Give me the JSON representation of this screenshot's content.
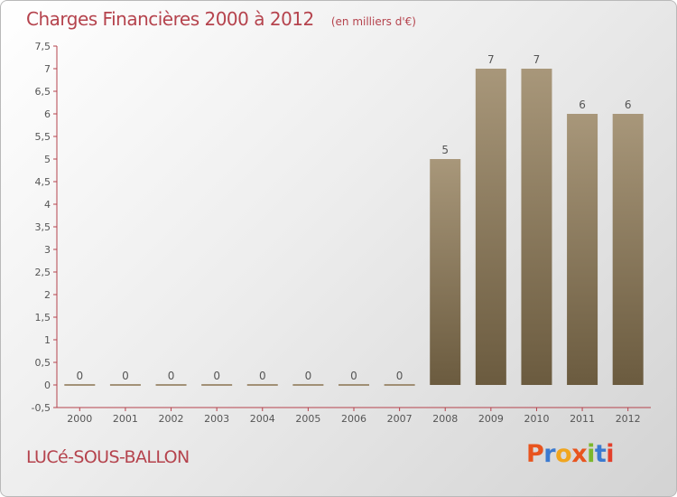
{
  "header": {
    "title": "Charges Financières 2000 à 2012",
    "subtitle": "(en milliers d'€)"
  },
  "footer": {
    "commune": "LUCé-SOUS-BALLON",
    "brand": "Proxiti",
    "brand_colors": [
      "#e8541e",
      "#3b7ad0",
      "#f0a51e",
      "#e8541e",
      "#7cb72b",
      "#3b7ad0",
      "#e33f2a"
    ]
  },
  "chart_data": {
    "type": "bar",
    "title": "Charges Financières 2000 à 2012",
    "subtitle": "(en milliers d'€)",
    "categories": [
      "2000",
      "2001",
      "2002",
      "2003",
      "2004",
      "2005",
      "2006",
      "2007",
      "2008",
      "2009",
      "2010",
      "2011",
      "2012"
    ],
    "values": [
      0,
      0,
      0,
      0,
      0,
      0,
      0,
      0,
      5,
      7,
      7,
      6,
      6
    ],
    "data_labels": [
      "0",
      "0",
      "0",
      "0",
      "0",
      "0",
      "0",
      "0",
      "5",
      "7",
      "7",
      "6",
      "6"
    ],
    "y_ticks": [
      "-0,5",
      "0",
      "0,5",
      "1",
      "1,5",
      "2",
      "2,5",
      "3",
      "3,5",
      "4",
      "4,5",
      "5",
      "5,5",
      "6",
      "6,5",
      "7",
      "7,5"
    ],
    "ylim": [
      -0.5,
      7.5
    ],
    "xlabel": "",
    "ylabel": "",
    "grid": false,
    "bar_color_top": "#a8977a",
    "bar_color_bottom": "#6b5b3f",
    "axis_color": "#b5434d"
  }
}
